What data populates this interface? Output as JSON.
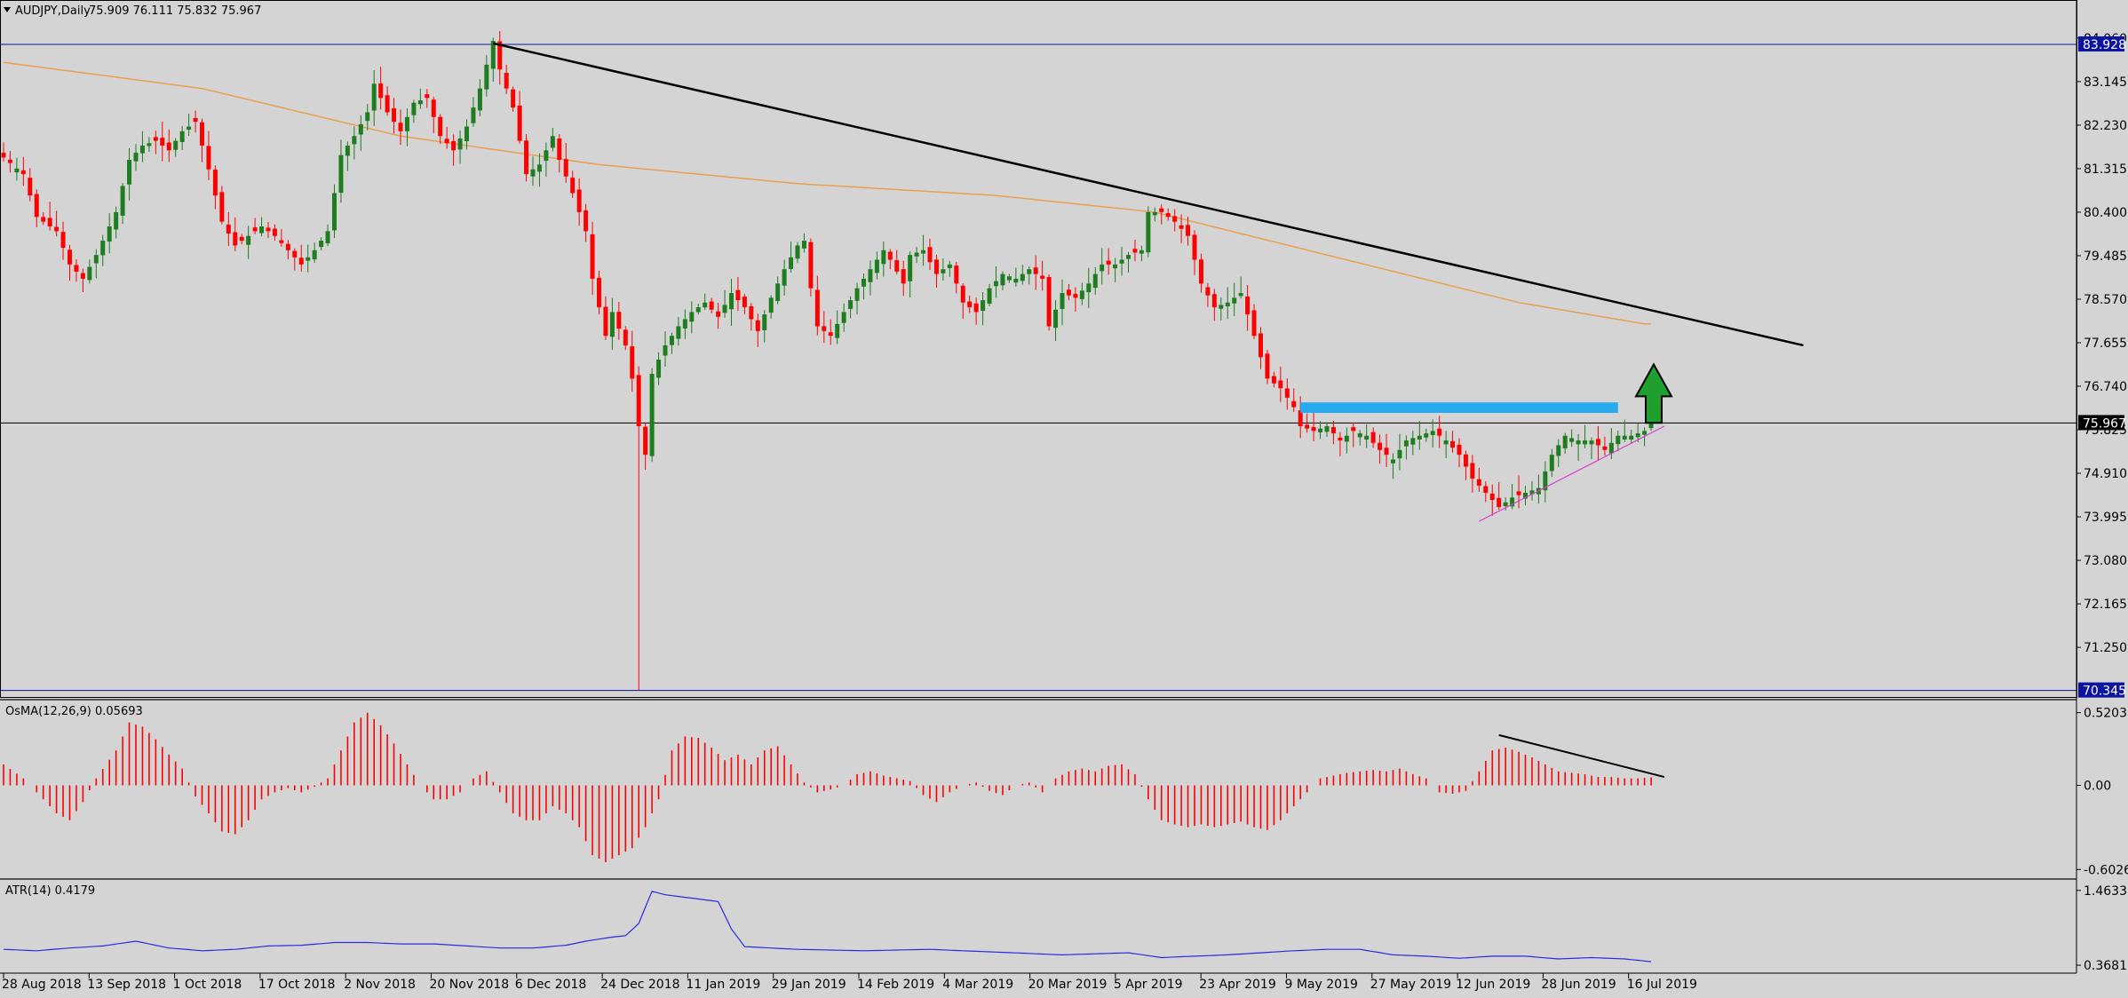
{
  "header": {
    "symbol_label": "AUDJPY,Daily",
    "ohlc": "75.909 76.111 75.832 75.967"
  },
  "colors": {
    "background": "#d4d4d4",
    "bull": "#1e7d1e",
    "bear": "#ff0000",
    "ma": "#e8a050",
    "trendline": "#000000",
    "support_trendline": "#d63fd6",
    "resistance_box": "#28aaf0",
    "arrow": "#1fa02e",
    "hline_blue": "#0a14a0",
    "atr_line": "#2a2adf",
    "osma_bars": "#ff0000"
  },
  "chart_data": [
    {
      "type": "candlestick",
      "title": "AUDJPY,Daily",
      "price_axis_ticks": [
        "84.060",
        "83.145",
        "82.230",
        "81.315",
        "80.400",
        "79.485",
        "78.570",
        "77.655",
        "76.740",
        "75.825",
        "74.910",
        "73.995",
        "73.080",
        "72.165",
        "71.250"
      ],
      "ylim": [
        70.3,
        84.45
      ],
      "price_labels": {
        "high_line": "83.928",
        "current": "75.967",
        "low_line": "70.345"
      },
      "x_ticks": [
        "28 Aug 2018",
        "13 Sep 2018",
        "1 Oct 2018",
        "17 Oct 2018",
        "2 Nov 2018",
        "20 Nov 2018",
        "6 Dec 2018",
        "24 Dec 2018",
        "11 Jan 2019",
        "29 Jan 2019",
        "14 Feb 2019",
        "4 Mar 2019",
        "20 Mar 2019",
        "5 Apr 2019",
        "23 Apr 2019",
        "9 May 2019",
        "27 May 2019",
        "12 Jun 2019",
        "28 Jun 2019",
        "16 Jul 2019"
      ],
      "close_path": [
        [
          0,
          81.55
        ],
        [
          3,
          81.2
        ],
        [
          5,
          80.3
        ],
        [
          8,
          80.0
        ],
        [
          10,
          79.3
        ],
        [
          12,
          79.0
        ],
        [
          14,
          79.5
        ],
        [
          17,
          80.4
        ],
        [
          19,
          81.5
        ],
        [
          21,
          81.8
        ],
        [
          23,
          81.9
        ],
        [
          25,
          81.7
        ],
        [
          27,
          82.1
        ],
        [
          29,
          82.3
        ],
        [
          31,
          81.3
        ],
        [
          33,
          80.2
        ],
        [
          35,
          79.7
        ],
        [
          37,
          79.9
        ],
        [
          39,
          80.1
        ],
        [
          41,
          79.9
        ],
        [
          43,
          79.6
        ],
        [
          45,
          79.3
        ],
        [
          47,
          79.6
        ],
        [
          49,
          80.0
        ],
        [
          51,
          81.6
        ],
        [
          53,
          82.0
        ],
        [
          55,
          82.5
        ],
        [
          56,
          83.1
        ],
        [
          58,
          82.5
        ],
        [
          60,
          82.1
        ],
        [
          62,
          82.7
        ],
        [
          64,
          82.8
        ],
        [
          66,
          82.0
        ],
        [
          68,
          81.7
        ],
        [
          70,
          82.2
        ],
        [
          72,
          83.0
        ],
        [
          73,
          83.5
        ],
        [
          74,
          84.0
        ],
        [
          75,
          83.4
        ],
        [
          77,
          82.6
        ],
        [
          79,
          81.2
        ],
        [
          81,
          81.4
        ],
        [
          83,
          82.0
        ],
        [
          84,
          81.5
        ],
        [
          86,
          80.8
        ],
        [
          88,
          80.0
        ],
        [
          89,
          79.0
        ],
        [
          90,
          78.4
        ],
        [
          91,
          77.8
        ],
        [
          92,
          78.3
        ],
        [
          94,
          77.6
        ],
        [
          95,
          76.9
        ],
        [
          96,
          75.9
        ],
        [
          97,
          75.3
        ],
        [
          98,
          77.0
        ],
        [
          100,
          77.6
        ],
        [
          102,
          78.0
        ],
        [
          104,
          78.3
        ],
        [
          106,
          78.5
        ],
        [
          108,
          78.2
        ],
        [
          110,
          78.7
        ],
        [
          112,
          78.4
        ],
        [
          114,
          77.9
        ],
        [
          116,
          78.6
        ],
        [
          118,
          79.2
        ],
        [
          120,
          79.7
        ],
        [
          121,
          79.8
        ],
        [
          122,
          78.8
        ],
        [
          123,
          78.0
        ],
        [
          125,
          77.8
        ],
        [
          127,
          78.3
        ],
        [
          129,
          78.8
        ],
        [
          131,
          79.2
        ],
        [
          133,
          79.6
        ],
        [
          134,
          79.4
        ],
        [
          136,
          78.9
        ],
        [
          137,
          79.5
        ],
        [
          139,
          79.6
        ],
        [
          141,
          79.1
        ],
        [
          143,
          79.3
        ],
        [
          145,
          78.5
        ],
        [
          147,
          78.3
        ],
        [
          149,
          78.8
        ],
        [
          151,
          79.1
        ],
        [
          153,
          79.0
        ],
        [
          155,
          79.2
        ],
        [
          157,
          79.0
        ],
        [
          158,
          78.0
        ],
        [
          160,
          78.7
        ],
        [
          162,
          78.6
        ],
        [
          164,
          78.9
        ],
        [
          166,
          79.3
        ],
        [
          168,
          79.3
        ],
        [
          170,
          79.5
        ],
        [
          172,
          79.6
        ],
        [
          173,
          80.4
        ],
        [
          175,
          80.4
        ],
        [
          177,
          80.2
        ],
        [
          179,
          79.9
        ],
        [
          181,
          78.9
        ],
        [
          183,
          78.4
        ],
        [
          185,
          78.5
        ],
        [
          187,
          78.7
        ],
        [
          189,
          77.8
        ],
        [
          191,
          76.9
        ],
        [
          193,
          76.7
        ],
        [
          195,
          76.3
        ],
        [
          196,
          75.9
        ],
        [
          198,
          75.8
        ],
        [
          200,
          75.9
        ],
        [
          202,
          75.6
        ],
        [
          204,
          75.8
        ],
        [
          206,
          75.7
        ],
        [
          208,
          75.4
        ],
        [
          210,
          75.2
        ],
        [
          212,
          75.6
        ],
        [
          214,
          75.7
        ],
        [
          216,
          75.8
        ],
        [
          218,
          75.6
        ],
        [
          220,
          75.3
        ],
        [
          222,
          74.8
        ],
        [
          224,
          74.5
        ],
        [
          226,
          74.2
        ],
        [
          228,
          74.4
        ],
        [
          230,
          74.5
        ],
        [
          232,
          74.6
        ],
        [
          234,
          75.3
        ],
        [
          236,
          75.7
        ],
        [
          238,
          75.6
        ],
        [
          240,
          75.6
        ],
        [
          242,
          75.4
        ],
        [
          244,
          75.7
        ],
        [
          246,
          75.7
        ],
        [
          248,
          75.8
        ],
        [
          249,
          75.97
        ]
      ],
      "moving_average_path": [
        [
          0,
          83.55
        ],
        [
          30,
          83.0
        ],
        [
          60,
          82.0
        ],
        [
          90,
          81.4
        ],
        [
          120,
          81.0
        ],
        [
          150,
          80.75
        ],
        [
          174,
          80.4
        ],
        [
          200,
          79.5
        ],
        [
          229,
          78.5
        ],
        [
          248,
          78.05
        ]
      ],
      "resistance_level": 76.3,
      "annotations": {
        "down_trendline": [
          [
            74,
            83.95
          ],
          [
            272,
            77.6
          ]
        ],
        "support_trendline": [
          [
            223,
            73.9
          ],
          [
            251,
            75.9
          ]
        ],
        "resistance_box": [
          [
            196,
            76.18
          ],
          [
            244,
            76.4
          ]
        ],
        "up_arrow_at": 249
      }
    },
    {
      "type": "bar",
      "title": "OsMA(12,26,9) 0.05693",
      "yticks": [
        "0.52035",
        "0.00",
        "-0.60264"
      ],
      "ylim": [
        -0.62,
        0.55
      ],
      "values_path": [
        [
          0,
          0.15
        ],
        [
          3,
          0.05
        ],
        [
          5,
          -0.05
        ],
        [
          8,
          -0.2
        ],
        [
          10,
          -0.25
        ],
        [
          12,
          -0.12
        ],
        [
          14,
          0.05
        ],
        [
          17,
          0.25
        ],
        [
          19,
          0.45
        ],
        [
          21,
          0.42
        ],
        [
          23,
          0.33
        ],
        [
          25,
          0.22
        ],
        [
          27,
          0.12
        ],
        [
          29,
          -0.08
        ],
        [
          31,
          -0.2
        ],
        [
          33,
          -0.33
        ],
        [
          35,
          -0.35
        ],
        [
          37,
          -0.25
        ],
        [
          39,
          -0.1
        ],
        [
          41,
          -0.05
        ],
        [
          43,
          -0.02
        ],
        [
          45,
          -0.05
        ],
        [
          47,
          -0.01
        ],
        [
          49,
          0.05
        ],
        [
          51,
          0.25
        ],
        [
          53,
          0.45
        ],
        [
          55,
          0.52
        ],
        [
          57,
          0.43
        ],
        [
          59,
          0.3
        ],
        [
          61,
          0.15
        ],
        [
          63,
          0.0
        ],
        [
          65,
          -0.1
        ],
        [
          67,
          -0.1
        ],
        [
          69,
          -0.05
        ],
        [
          71,
          0.05
        ],
        [
          73,
          0.1
        ],
        [
          75,
          -0.05
        ],
        [
          77,
          -0.2
        ],
        [
          79,
          -0.25
        ],
        [
          81,
          -0.25
        ],
        [
          83,
          -0.15
        ],
        [
          85,
          -0.2
        ],
        [
          87,
          -0.3
        ],
        [
          89,
          -0.5
        ],
        [
          91,
          -0.55
        ],
        [
          93,
          -0.5
        ],
        [
          95,
          -0.45
        ],
        [
          97,
          -0.3
        ],
        [
          99,
          -0.1
        ],
        [
          101,
          0.25
        ],
        [
          103,
          0.35
        ],
        [
          105,
          0.34
        ],
        [
          107,
          0.27
        ],
        [
          109,
          0.18
        ],
        [
          111,
          0.22
        ],
        [
          113,
          0.15
        ],
        [
          115,
          0.25
        ],
        [
          117,
          0.28
        ],
        [
          119,
          0.15
        ],
        [
          121,
          0.02
        ],
        [
          123,
          -0.05
        ],
        [
          125,
          -0.03
        ],
        [
          127,
          0.0
        ],
        [
          129,
          0.08
        ],
        [
          131,
          0.1
        ],
        [
          133,
          0.07
        ],
        [
          135,
          0.05
        ],
        [
          137,
          0.03
        ],
        [
          139,
          -0.07
        ],
        [
          141,
          -0.12
        ],
        [
          143,
          -0.05
        ],
        [
          145,
          0.0
        ],
        [
          147,
          0.02
        ],
        [
          149,
          -0.04
        ],
        [
          151,
          -0.07
        ],
        [
          153,
          0.0
        ],
        [
          155,
          0.02
        ],
        [
          157,
          -0.05
        ],
        [
          159,
          0.05
        ],
        [
          161,
          0.1
        ],
        [
          163,
          0.12
        ],
        [
          165,
          0.1
        ],
        [
          167,
          0.14
        ],
        [
          169,
          0.15
        ],
        [
          171,
          0.08
        ],
        [
          173,
          -0.1
        ],
        [
          175,
          -0.25
        ],
        [
          177,
          -0.28
        ],
        [
          179,
          -0.3
        ],
        [
          181,
          -0.28
        ],
        [
          183,
          -0.3
        ],
        [
          185,
          -0.28
        ],
        [
          187,
          -0.26
        ],
        [
          189,
          -0.3
        ],
        [
          191,
          -0.32
        ],
        [
          193,
          -0.25
        ],
        [
          195,
          -0.15
        ],
        [
          197,
          -0.05
        ],
        [
          199,
          0.05
        ],
        [
          201,
          0.07
        ],
        [
          203,
          0.09
        ],
        [
          205,
          0.1
        ],
        [
          207,
          0.11
        ],
        [
          209,
          0.1
        ],
        [
          211,
          0.12
        ],
        [
          213,
          0.08
        ],
        [
          215,
          0.05
        ],
        [
          217,
          -0.05
        ],
        [
          219,
          -0.06
        ],
        [
          221,
          -0.04
        ],
        [
          223,
          0.1
        ],
        [
          225,
          0.25
        ],
        [
          227,
          0.27
        ],
        [
          229,
          0.24
        ],
        [
          231,
          0.2
        ],
        [
          233,
          0.15
        ],
        [
          235,
          0.1
        ],
        [
          237,
          0.09
        ],
        [
          239,
          0.08
        ],
        [
          241,
          0.06
        ],
        [
          243,
          0.06
        ],
        [
          245,
          0.05
        ],
        [
          247,
          0.05
        ],
        [
          249,
          0.057
        ]
      ],
      "annotations": {
        "trendline": [
          [
            226,
            0.36
          ],
          [
            251,
            0.06
          ]
        ]
      }
    },
    {
      "type": "line",
      "title": "ATR(14) 0.4179",
      "yticks": [
        "1.4633",
        "0.3681"
      ],
      "ylim": [
        0.33,
        1.5
      ],
      "values_path": [
        [
          0,
          0.6
        ],
        [
          5,
          0.58
        ],
        [
          10,
          0.62
        ],
        [
          15,
          0.65
        ],
        [
          20,
          0.72
        ],
        [
          25,
          0.62
        ],
        [
          30,
          0.58
        ],
        [
          35,
          0.6
        ],
        [
          40,
          0.65
        ],
        [
          45,
          0.66
        ],
        [
          50,
          0.7
        ],
        [
          55,
          0.7
        ],
        [
          60,
          0.68
        ],
        [
          65,
          0.68
        ],
        [
          70,
          0.65
        ],
        [
          75,
          0.62
        ],
        [
          80,
          0.62
        ],
        [
          85,
          0.66
        ],
        [
          88,
          0.72
        ],
        [
          92,
          0.78
        ],
        [
          94,
          0.8
        ],
        [
          96,
          0.98
        ],
        [
          98,
          1.45
        ],
        [
          100,
          1.4
        ],
        [
          104,
          1.35
        ],
        [
          108,
          1.3
        ],
        [
          110,
          0.9
        ],
        [
          112,
          0.64
        ],
        [
          116,
          0.62
        ],
        [
          120,
          0.6
        ],
        [
          130,
          0.58
        ],
        [
          140,
          0.6
        ],
        [
          150,
          0.56
        ],
        [
          160,
          0.52
        ],
        [
          170,
          0.55
        ],
        [
          175,
          0.48
        ],
        [
          180,
          0.5
        ],
        [
          185,
          0.52
        ],
        [
          190,
          0.55
        ],
        [
          195,
          0.58
        ],
        [
          200,
          0.6
        ],
        [
          205,
          0.6
        ],
        [
          210,
          0.52
        ],
        [
          215,
          0.5
        ],
        [
          220,
          0.47
        ],
        [
          225,
          0.5
        ],
        [
          230,
          0.5
        ],
        [
          235,
          0.46
        ],
        [
          240,
          0.48
        ],
        [
          245,
          0.46
        ],
        [
          249,
          0.42
        ]
      ]
    }
  ]
}
